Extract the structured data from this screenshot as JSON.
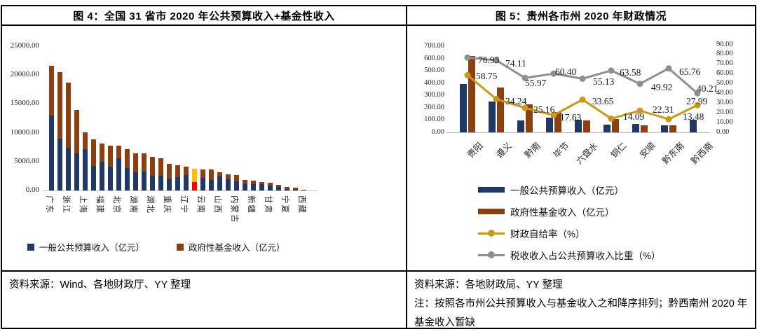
{
  "panels": {
    "figure4": {
      "title": "图 4：全国 31 省市 2020 年公共预算收入+基金性收入",
      "source": "资料来源：Wind、各地财政厅、YY 整理"
    },
    "figure5": {
      "title": "图 5：贵州各市州 2020 年财政情况",
      "source": "资料来源：各地财政局、YY 整理",
      "note": "注：按照各市州公共预算收入与基金收入之和降序排列；黔西南州 2020 年基金收入暂缺"
    }
  },
  "colors": {
    "budget_blue": "#1F3864",
    "fund_brown": "#8A4010",
    "highlight_red": "#FF0000",
    "highlight_gold": "#FFC000",
    "selfsuff_yellow": "#C8991B",
    "taxshare_gray": "#8F8F8F",
    "axis_gray": "#BFBFBF"
  },
  "chart_data": [
    {
      "id": "figure4",
      "type": "bar",
      "stacked": true,
      "title": "图 4：全国 31 省市 2020 年公共预算收入+基金性收入",
      "ylim": [
        0,
        25000
      ],
      "ytick_step": 5000,
      "grid": false,
      "legend_position": "bottom",
      "categories": [
        "广东",
        "",
        "浙江",
        "",
        "上海",
        "",
        "福建",
        "",
        "北京",
        "",
        "湖南",
        "",
        "湖北",
        "",
        "重庆",
        "",
        "辽宁",
        "",
        "云南",
        "",
        "山西",
        "",
        "内蒙古",
        "",
        "新疆",
        "",
        "甘肃",
        "",
        "宁夏",
        "",
        "西藏"
      ],
      "series": [
        {
          "name": "一般公共预算收入（亿元）",
          "color": "#1F3864",
          "values": [
            12950,
            9000,
            7370,
            6400,
            7100,
            4250,
            4940,
            4130,
            5550,
            3900,
            3100,
            3250,
            2550,
            2520,
            2100,
            2280,
            2700,
            1450,
            2150,
            1780,
            2400,
            1930,
            1520,
            1240,
            1040,
            1120,
            830,
            585,
            300,
            180,
            100
          ]
        },
        {
          "name": "政府性基金收入（亿元）",
          "color": "#8A4010",
          "values": [
            8700,
            11450,
            11320,
            7560,
            3000,
            4570,
            3230,
            3670,
            2250,
            3200,
            3350,
            3150,
            3250,
            3080,
            2500,
            2120,
            1400,
            2300,
            1550,
            1870,
            750,
            900,
            1140,
            560,
            690,
            320,
            490,
            415,
            285,
            250,
            60
          ]
        }
      ],
      "highlight": {
        "index": 17,
        "bottom_color": "#FF0000",
        "top_color": "#FFC000"
      }
    },
    {
      "id": "figure5",
      "type": "combo",
      "title": "图 5：贵州各市州 2020 年财政情况",
      "grid": false,
      "legend_position": "bottom-left",
      "categories": [
        "贵阳",
        "遵义",
        "黔南",
        "毕节",
        "六盘水",
        "铜仁",
        "安顺",
        "黔东南",
        "黔西南"
      ],
      "left_axis": {
        "lim": [
          0,
          700
        ],
        "step": 100
      },
      "right_axis": {
        "lim": [
          0,
          90
        ],
        "step": 10
      },
      "bar_series": [
        {
          "name": "一般公共预算收入（亿元）",
          "color": "#1F3864",
          "axis": "left",
          "values": [
            397,
            253,
            100,
            120,
            103,
            62,
            66,
            60,
            103
          ]
        },
        {
          "name": "政府性基金收入（亿元）",
          "color": "#8A4010",
          "axis": "left",
          "values": [
            625,
            364,
            227,
            167,
            100,
            108,
            57,
            57,
            null
          ]
        }
      ],
      "line_series": [
        {
          "name": "财政自给率（%）",
          "color": "#C8991B",
          "axis": "right",
          "values": [
            58.75,
            34.24,
            25.16,
            17.63,
            33.65,
            14.09,
            22.31,
            13.48,
            27.99
          ]
        },
        {
          "name": "税收收入占公共预算收入比重（%）",
          "color": "#8F8F8F",
          "axis": "right",
          "values": [
            76.93,
            74.11,
            55.97,
            60.4,
            55.13,
            63.58,
            49.92,
            65.76,
            40.21
          ]
        }
      ]
    }
  ]
}
